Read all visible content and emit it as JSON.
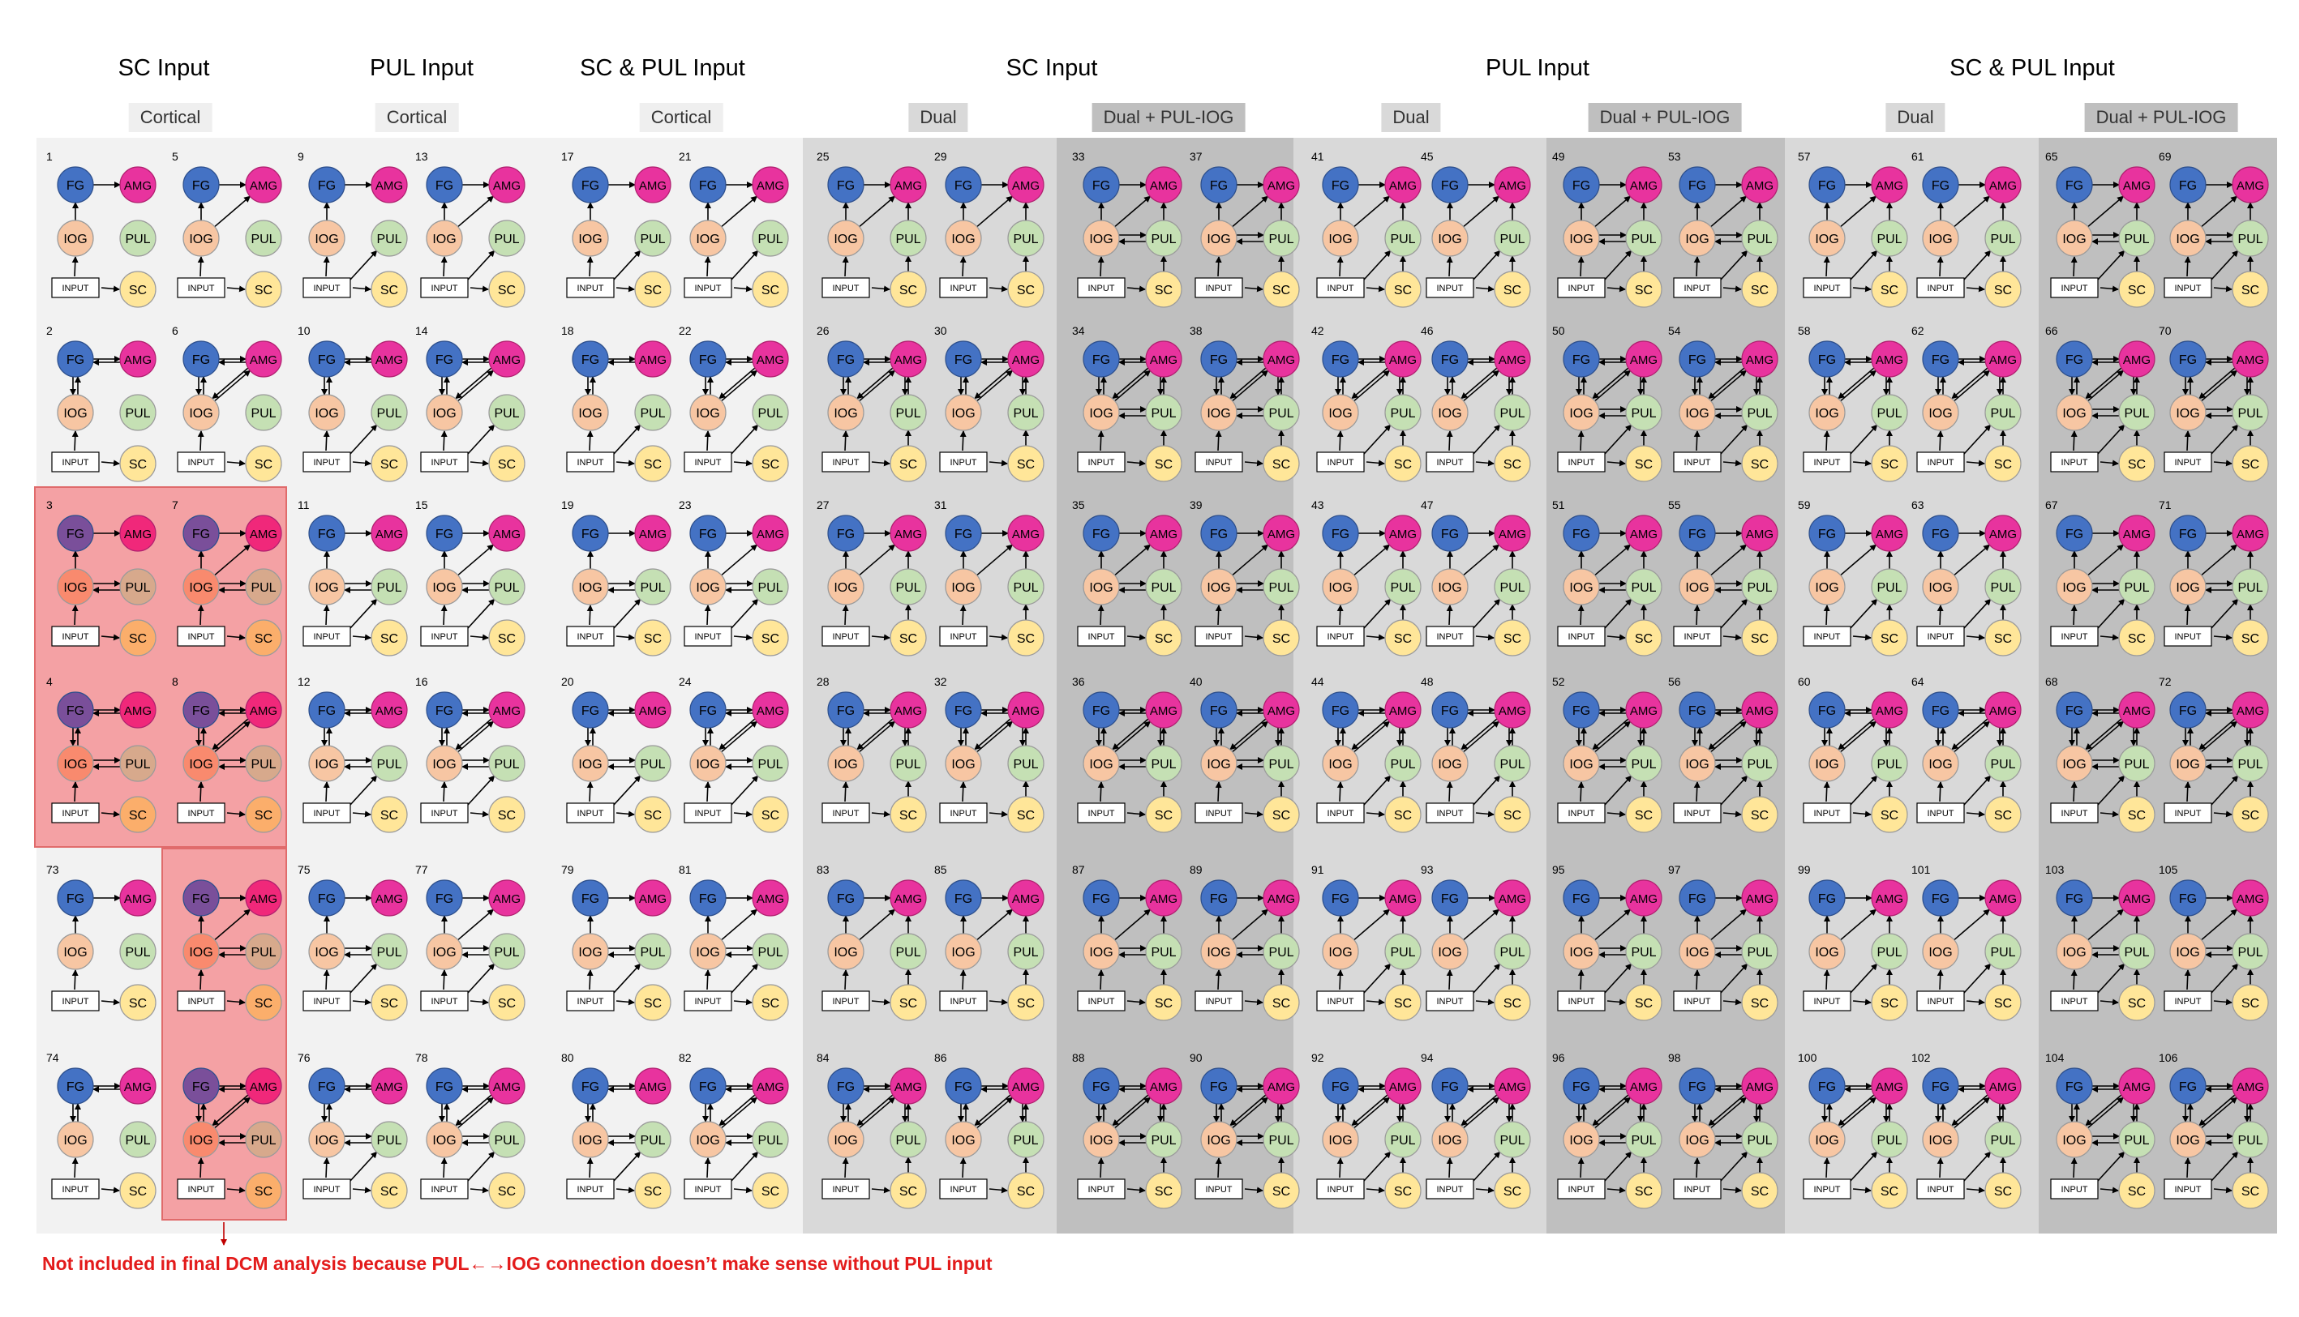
{
  "headers": [
    {
      "id": "h1",
      "text": "SC Input"
    },
    {
      "id": "h2",
      "text": "PUL Input"
    },
    {
      "id": "h3",
      "text": "SC & PUL Input"
    },
    {
      "id": "h4",
      "text": "SC Input"
    },
    {
      "id": "h5",
      "text": "PUL Input"
    },
    {
      "id": "h6",
      "text": "SC & PUL Input"
    }
  ],
  "subheaders": [
    {
      "id": "s1",
      "text": "Cortical"
    },
    {
      "id": "s2",
      "text": "Cortical"
    },
    {
      "id": "s3",
      "text": "Cortical"
    },
    {
      "id": "s4",
      "text": "Dual"
    },
    {
      "id": "s5",
      "text": "Dual + PUL-IOG"
    },
    {
      "id": "s6",
      "text": "Dual"
    },
    {
      "id": "s7",
      "text": "Dual + PUL-IOG"
    },
    {
      "id": "s8",
      "text": "Dual"
    },
    {
      "id": "s9",
      "text": "Dual + PUL-IOG"
    }
  ],
  "node_labels": {
    "fg": "FG",
    "amg": "AMG",
    "iog": "IOG",
    "pul": "PUL",
    "sc": "SC",
    "input": "INPUT"
  },
  "colors": {
    "fg": "#4472c4",
    "amg": "#e8339e",
    "iog": "#f7c6a3",
    "pul": "#c5e0b4",
    "sc": "#ffe699",
    "fg_excluded": "#7a4f9a",
    "amg_excluded": "#f0287a",
    "iog_excluded": "#f98a6e",
    "pul_excluded": "#d7a98c",
    "sc_excluded": "#fbae6b",
    "excluded_overlay": "#f4a1a4",
    "note": "#e31b1b"
  },
  "model_rows": [
    [
      1,
      5,
      9,
      13,
      17,
      21,
      25,
      29,
      33,
      37,
      41,
      45,
      49,
      53,
      57,
      61,
      65,
      69
    ],
    [
      2,
      6,
      10,
      14,
      18,
      22,
      26,
      30,
      34,
      38,
      42,
      46,
      50,
      54,
      58,
      62,
      66,
      70
    ],
    [
      3,
      7,
      11,
      15,
      19,
      23,
      27,
      31,
      35,
      39,
      43,
      47,
      51,
      55,
      59,
      63,
      67,
      71
    ],
    [
      4,
      8,
      12,
      16,
      20,
      24,
      28,
      32,
      36,
      40,
      44,
      48,
      52,
      56,
      60,
      64,
      68,
      72
    ],
    [
      73,
      null,
      75,
      77,
      79,
      81,
      83,
      85,
      87,
      89,
      91,
      93,
      95,
      97,
      99,
      101,
      103,
      105
    ],
    [
      74,
      null,
      76,
      78,
      80,
      82,
      84,
      86,
      88,
      90,
      92,
      94,
      96,
      98,
      100,
      102,
      104,
      106
    ]
  ],
  "excluded_models": [
    3,
    4,
    7,
    8
  ],
  "excluded_unnumbered_positions": [
    [
      4,
      1
    ],
    [
      5,
      1
    ]
  ],
  "note": "Not included in final DCM analysis because PUL←→IOG connection doesn’t make sense without PUL input"
}
